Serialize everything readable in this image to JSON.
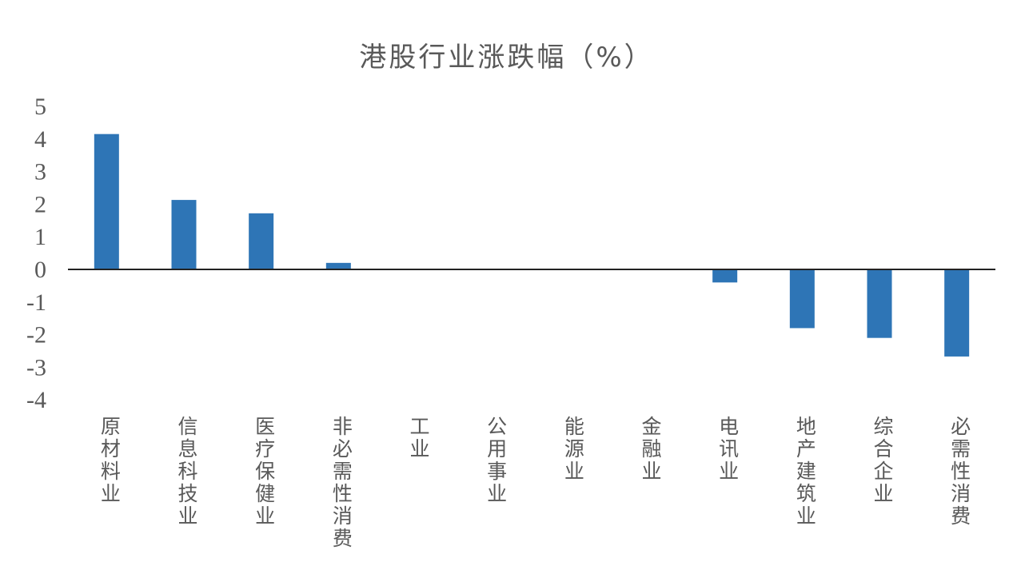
{
  "chart_data": {
    "type": "bar",
    "title": "港股行业涨跌幅（%）",
    "categories": [
      "原材料业",
      "信息科技业",
      "医疗保健业",
      "非必需性消费",
      "工业",
      "公用事业",
      "能源业",
      "金融业",
      "电讯业",
      "地产建筑业",
      "综合企业",
      "必需性消费"
    ],
    "values": [
      4.15,
      2.13,
      1.72,
      0.2,
      0,
      0,
      0,
      0,
      -0.4,
      -1.8,
      -2.1,
      -2.67
    ],
    "ylim": [
      -4,
      5
    ],
    "yticks": [
      "5",
      "4",
      "3",
      "2",
      "1",
      "0",
      "-1",
      "-2",
      "-3",
      "-4"
    ],
    "xlabel": "",
    "ylabel": "",
    "grid": false,
    "bar_color": "#2e75b6"
  }
}
